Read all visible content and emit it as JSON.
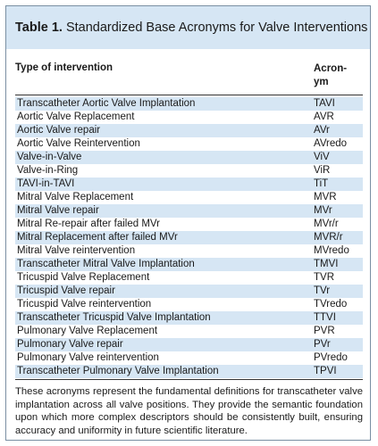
{
  "title": {
    "label": "Table 1.",
    "text": "Standardized Base Acronyms for Valve Interventions"
  },
  "table": {
    "header": [
      "Type of intervention",
      "Acron-ym"
    ],
    "rows": [
      [
        "Transcatheter Aortic Valve Implantation",
        "TAVI"
      ],
      [
        "Aortic Valve Replacement",
        "AVR"
      ],
      [
        "Aortic Valve repair",
        "AVr"
      ],
      [
        "Aortic Valve Reintervention",
        "AVredo"
      ],
      [
        "Valve-in-Valve",
        "ViV"
      ],
      [
        "Valve-in-Ring",
        "ViR"
      ],
      [
        "TAVI-in-TAVI",
        "TiT"
      ],
      [
        "Mitral Valve Replacement",
        "MVR"
      ],
      [
        "Mitral Valve repair",
        "MVr"
      ],
      [
        "Mitral Re-repair after failed MVr",
        "MVr/r"
      ],
      [
        "Mitral Replacement after failed MVr",
        "MVR/r"
      ],
      [
        "Mitral Valve reintervention",
        "MVredo"
      ],
      [
        "Transcatheter Mitral Valve Implantation",
        "TMVI"
      ],
      [
        "Tricuspid Valve Replacement",
        "TVR"
      ],
      [
        "Tricuspid Valve repair",
        "TVr"
      ],
      [
        "Tricuspid Valve reintervention",
        "TVredo"
      ],
      [
        "Transcatheter Tricuspid Valve Implantation",
        "TTVI"
      ],
      [
        "Pulmonary Valve Replacement",
        "PVR"
      ],
      [
        "Pulmonary Valve repair",
        "PVr"
      ],
      [
        "Pulmonary Valve reintervention",
        "PVredo"
      ],
      [
        "Transcatheter Pulmonary Valve Implantation",
        "TPVI"
      ]
    ]
  },
  "footnote": "These acronyms represent the fundamental definitions for transcatheter valve implantation across all valve positions. They provide the semantic foundation upon which more complex descriptors should be consistently built, ensuring accuracy and uniformity in future scientific literature."
}
